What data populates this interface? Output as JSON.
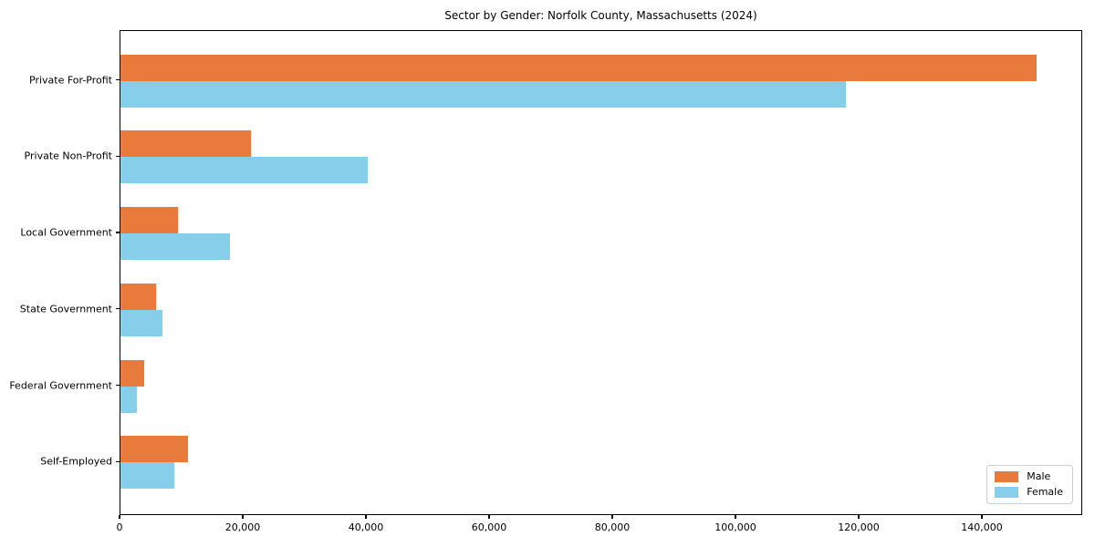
{
  "chart_data": {
    "type": "bar",
    "orientation": "horizontal",
    "title": "Sector by Gender: Norfolk County, Massachusetts (2024)",
    "categories": [
      "Private For-Profit",
      "Private Non-Profit",
      "Local Government",
      "State Government",
      "Federal Government",
      "Self-Employed"
    ],
    "series": [
      {
        "name": "Male",
        "color": "#e87a3c",
        "values": [
          148700,
          21200,
          9300,
          5800,
          3900,
          10900
        ]
      },
      {
        "name": "Female",
        "color": "#87ceeb",
        "values": [
          117800,
          40200,
          17700,
          6800,
          2600,
          8800
        ]
      }
    ],
    "xlabel": "",
    "ylabel": "",
    "xlim": [
      0,
      156300
    ],
    "x_ticks": [
      0,
      20000,
      40000,
      60000,
      80000,
      100000,
      120000,
      140000
    ],
    "x_tick_labels": [
      "0",
      "20,000",
      "40,000",
      "60,000",
      "80,000",
      "100,000",
      "120,000",
      "140,000"
    ],
    "grid": false,
    "legend": {
      "position": "lower right",
      "entries": [
        "Male",
        "Female"
      ]
    }
  },
  "colors": {
    "background": "#ffffff",
    "spine": "#000000",
    "text": "#000000",
    "male": "#e87a3c",
    "female": "#87ceeb",
    "legend_border": "#cccccc"
  }
}
